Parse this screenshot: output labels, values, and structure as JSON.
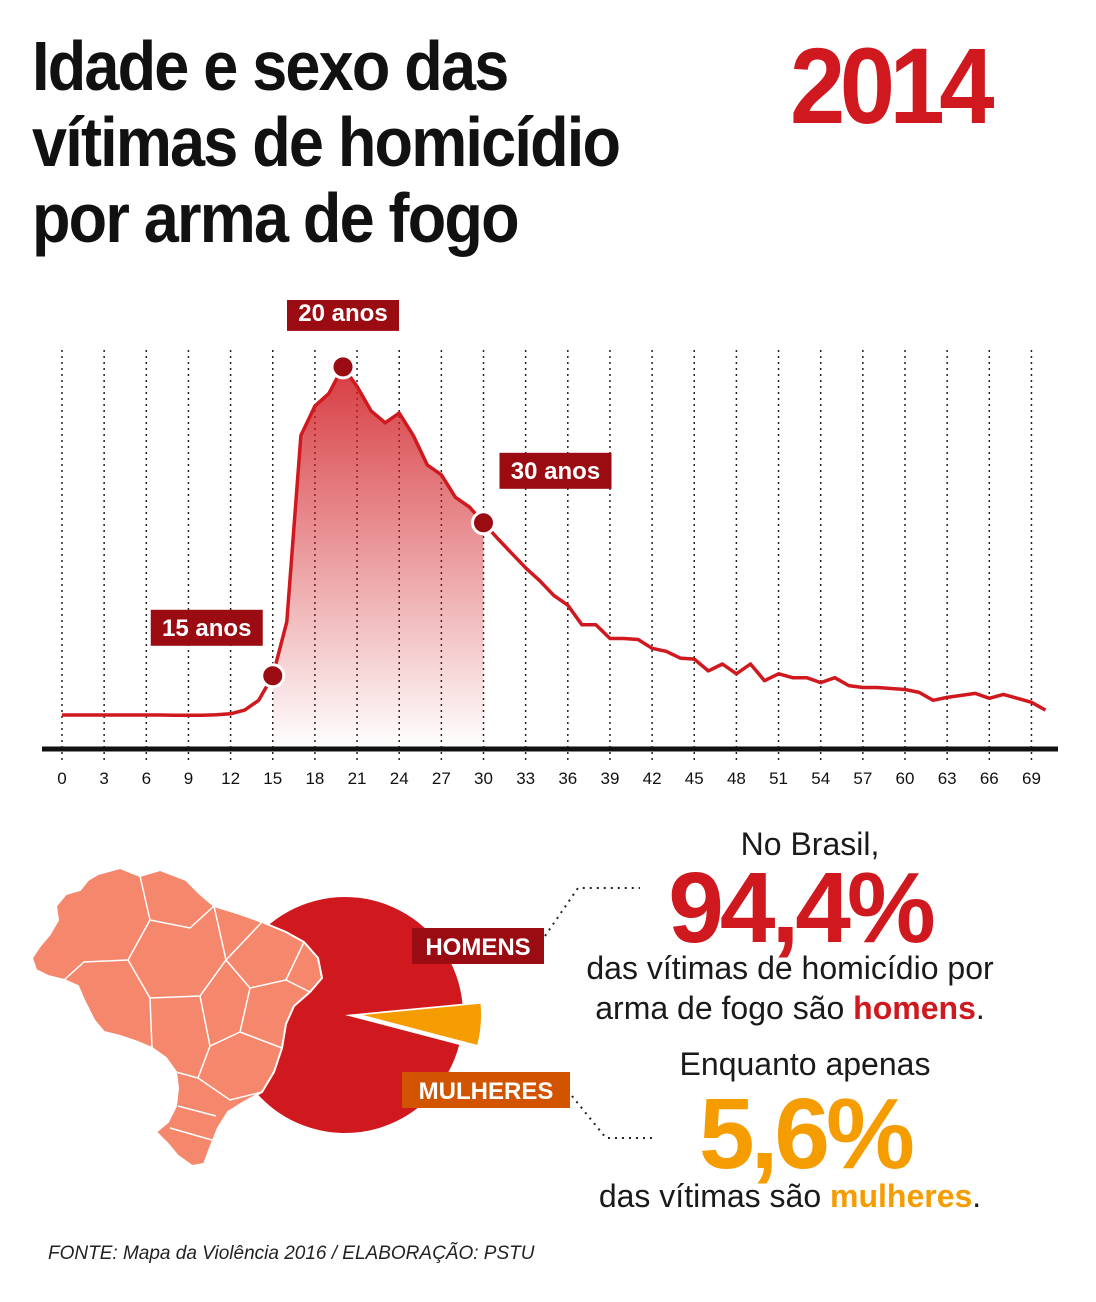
{
  "title": "Idade e sexo das vítimas de homicídio por arma de fogo",
  "year": "2014",
  "colors": {
    "red": "#d0191f",
    "dark_red": "#9a0b12",
    "orange": "#f59c00",
    "orange_label": "#d35400",
    "map": "#f4876c",
    "text": "#111111"
  },
  "chart_data": {
    "type": "line",
    "x_ticks": [
      "0",
      "3",
      "6",
      "9",
      "12",
      "15",
      "18",
      "21",
      "24",
      "27",
      "30",
      "33",
      "36",
      "39",
      "42",
      "45",
      "48",
      "51",
      "54",
      "57",
      "60",
      "63",
      "66",
      "69"
    ],
    "x": [
      0,
      1,
      2,
      3,
      4,
      5,
      6,
      7,
      8,
      9,
      10,
      11,
      12,
      13,
      14,
      15,
      16,
      17,
      18,
      19,
      20,
      21,
      22,
      23,
      24,
      25,
      26,
      27,
      28,
      29,
      30,
      31,
      32,
      33,
      34,
      35,
      36,
      37,
      38,
      39,
      40,
      41,
      42,
      43,
      44,
      45,
      46,
      47,
      48,
      49,
      50,
      51,
      52,
      53,
      54,
      55,
      56,
      57,
      58,
      59,
      60,
      61,
      62,
      63,
      64,
      65,
      66,
      67,
      68,
      69,
      70
    ],
    "values": [
      0,
      0,
      0,
      0,
      0,
      0,
      0,
      0,
      -0.3,
      -0.3,
      -0.2,
      0.2,
      1.2,
      5,
      15,
      40,
      95,
      285,
      315,
      328,
      355,
      335,
      310,
      298,
      308,
      285,
      255,
      245,
      222,
      212,
      196,
      180,
      165,
      150,
      137,
      122,
      112,
      92,
      92,
      78,
      78,
      77,
      68,
      65,
      58,
      57,
      45,
      52,
      42,
      52,
      35,
      42,
      38,
      38,
      33,
      38,
      30,
      28,
      28,
      27,
      26,
      23,
      15,
      18,
      20,
      22,
      17,
      21,
      17,
      13,
      5
    ],
    "highlight_range": [
      15,
      30
    ],
    "annotations": [
      {
        "x": 15,
        "label": "15 anos"
      },
      {
        "x": 20,
        "label": "20 anos"
      },
      {
        "x": 30,
        "label": "30 anos"
      }
    ],
    "grid": "vertical dotted",
    "ylim": [
      0,
      360
    ]
  },
  "gender": {
    "pie": [
      {
        "name": "HOMENS",
        "value": 94.4
      },
      {
        "name": "MULHERES",
        "value": 5.6
      }
    ],
    "intro": "No Brasil,",
    "men_percent": "94,4%",
    "men_desc_part1": "das vítimas de homicídio por arma de fogo são ",
    "men_word": "homens",
    "men_desc_end": ".",
    "intro2": "Enquanto apenas",
    "women_percent": "5,6%",
    "women_desc_part1": "das vítimas são ",
    "women_word": "mulheres",
    "women_desc_end": "."
  },
  "source": "FONTE: Mapa da Violência 2016 / ELABORAÇÃO: PSTU"
}
